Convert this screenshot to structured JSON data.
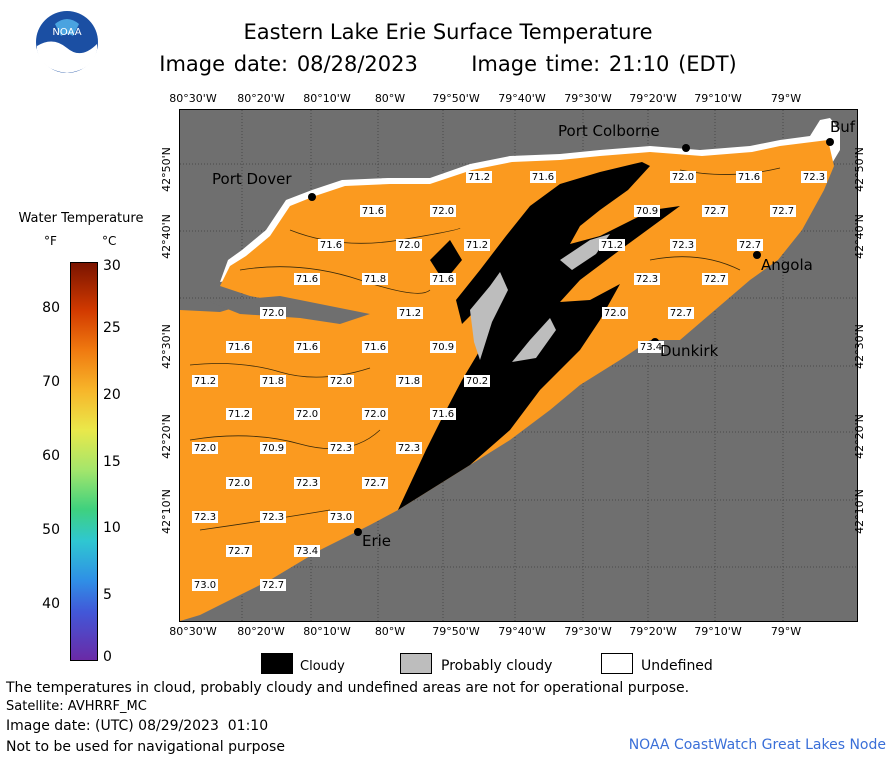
{
  "header": {
    "title": "Eastern Lake Erie Surface Temperature",
    "image_date": "Image date: 08/28/2023",
    "image_time": "Image time: 21:10 (EDT)"
  },
  "logo": {
    "text": "NOAA"
  },
  "map": {
    "colors": {
      "land": "#6f6f6f",
      "water": "#fb9a1f",
      "cloud": "#000000",
      "probably_cloudy": "#bdbdbd",
      "undefined": "#ffffff"
    },
    "lon_labels": [
      "80°30'W",
      "80°20'W",
      "80°10'W",
      "80°W",
      "79°50'W",
      "79°40'W",
      "79°30'W",
      "79°20'W",
      "79°10'W",
      "79°W"
    ],
    "lat_labels": [
      "42°50'N",
      "42°40'N",
      "42°30'N",
      "42°20'N",
      "42°10'N"
    ],
    "cities": [
      {
        "name": "Port Colborne"
      },
      {
        "name": "Port Dover"
      },
      {
        "name": "Buf"
      },
      {
        "name": "Angola"
      },
      {
        "name": "Dunkirk"
      },
      {
        "name": "Erie"
      }
    ],
    "temperatures": [
      "71.2",
      "71.6",
      "72.0",
      "71.6",
      "72.3",
      "71.6",
      "72.0",
      "70.9",
      "72.7",
      "72.7",
      "71.6",
      "72.0",
      "71.2",
      "71.2",
      "72.3",
      "72.7",
      "71.6",
      "71.8",
      "71.6",
      "72.3",
      "72.7",
      "72.0",
      "71.2",
      "72.0",
      "72.7",
      "71.6",
      "71.6",
      "71.6",
      "70.9",
      "73.4",
      "71.2",
      "71.8",
      "72.0",
      "71.8",
      "70.2",
      "71.2",
      "72.0",
      "72.0",
      "71.6",
      "72.0",
      "70.9",
      "72.3",
      "72.3",
      "72.0",
      "72.3",
      "72.7",
      "72.3",
      "72.3",
      "73.0",
      "72.7",
      "73.4",
      "73.0",
      "72.7"
    ]
  },
  "colorbar": {
    "title": "Water Temperature",
    "unit_f": "°F",
    "unit_c": "°C",
    "f_ticks": [
      "80",
      "70",
      "60",
      "50",
      "40"
    ],
    "c_ticks": [
      "30",
      "25",
      "20",
      "15",
      "10",
      "5",
      "0"
    ]
  },
  "legend": {
    "cloudy": "Cloudy",
    "probably_cloudy": "Probably cloudy",
    "undefined": "Undefined"
  },
  "footer": {
    "disclaimer": "The temperatures in cloud, probably cloudy and undefined areas are not for operational purpose.",
    "satellite": "Satellite: AVHRRF_MC",
    "utc_date": "Image date: (UTC) 08/29/2023  01:10",
    "nav_warning": "Not to be used for navigational purpose",
    "credit": "NOAA CoastWatch Great Lakes Node"
  }
}
